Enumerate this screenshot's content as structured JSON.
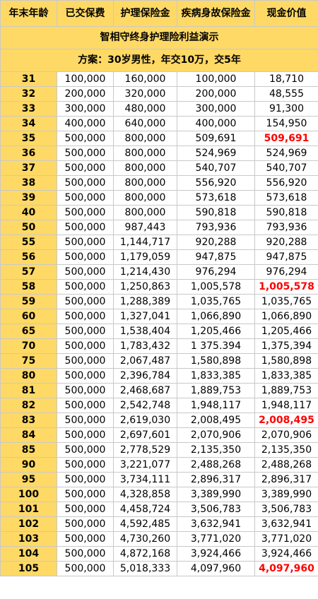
{
  "title": "智相守终身护理险利益演示",
  "plan": "方案：30岁男性，年交10万，交5年",
  "columns": [
    "年末年龄",
    "已交保费",
    "护理保险金",
    "疾病身故保险金",
    "现金价值"
  ],
  "rows": [
    [
      "31",
      "100,000",
      "160,000",
      "100,000",
      "18,710",
      false
    ],
    [
      "32",
      "200,000",
      "320,000",
      "200,000",
      "48,555",
      false
    ],
    [
      "33",
      "300,000",
      "480,000",
      "300,000",
      "91,300",
      false
    ],
    [
      "34",
      "400,000",
      "640,000",
      "400,000",
      "154,950",
      false
    ],
    [
      "35",
      "500,000",
      "800,000",
      "509,691",
      "509,691",
      true
    ],
    [
      "36",
      "500,000",
      "800,000",
      "524,969",
      "524,969",
      false
    ],
    [
      "37",
      "500,000",
      "800,000",
      "540,707",
      "540,707",
      false
    ],
    [
      "38",
      "500,000",
      "800,000",
      "556,920",
      "556,920",
      false
    ],
    [
      "39",
      "500,000",
      "800,000",
      "573,618",
      "573,618",
      false
    ],
    [
      "40",
      "500,000",
      "800,000",
      "590,818",
      "590,818",
      false
    ],
    [
      "50",
      "500,000",
      "987,443",
      "793,936",
      "793,936",
      false
    ],
    [
      "55",
      "500,000",
      "1,144,717",
      "920,288",
      "920,288",
      false
    ],
    [
      "56",
      "500,000",
      "1,179,059",
      "947,875",
      "947,875",
      false
    ],
    [
      "57",
      "500,000",
      "1,214,430",
      "976,294",
      "976,294",
      false
    ],
    [
      "58",
      "500,000",
      "1,250,863",
      "1,005,578",
      "1,005,578",
      true
    ],
    [
      "59",
      "500,000",
      "1,288,389",
      "1,035,765",
      "1,035,765",
      false
    ],
    [
      "60",
      "500,000",
      "1,327,041",
      "1,066,890",
      "1,066,890",
      false
    ],
    [
      "65",
      "500,000",
      "1,538,404",
      "1,205,466",
      "1,205,466",
      false
    ],
    [
      "70",
      "500,000",
      "1,783,432",
      "1 375.394",
      "1,375,394",
      false
    ],
    [
      "75",
      "500,000",
      "2,067,487",
      "1,580,898",
      "1,580,898",
      false
    ],
    [
      "80",
      "500,000",
      "2,396,784",
      "1,833,385",
      "1,833,385",
      false
    ],
    [
      "81",
      "500,000",
      "2,468,687",
      "1,889,753",
      "1,889,753",
      false
    ],
    [
      "82",
      "500,000",
      "2,542,748",
      "1,948,117",
      "1,948,117",
      false
    ],
    [
      "83",
      "500,000",
      "2,619,030",
      "2,008,495",
      "2,008,495",
      true
    ],
    [
      "84",
      "500,000",
      "2,697,601",
      "2,070,906",
      "2,070,906",
      false
    ],
    [
      "85",
      "500,000",
      "2,778,529",
      "2,135,350",
      "2,135,350",
      false
    ],
    [
      "90",
      "500,000",
      "3,221,077",
      "2,488,268",
      "2,488,268",
      false
    ],
    [
      "95",
      "500,000",
      "3,734,111",
      "2,896,317",
      "2,896,317",
      false
    ],
    [
      "100",
      "500,000",
      "4,328,858",
      "3,389,990",
      "3,389,990",
      false
    ],
    [
      "101",
      "500,000",
      "4,458,724",
      "3,506,783",
      "3,506,783",
      false
    ],
    [
      "102",
      "500,000",
      "4,592,485",
      "3,632,941",
      "3,632,941",
      false
    ],
    [
      "103",
      "500,000",
      "4,730,260",
      "3,771,020",
      "3,771,020",
      false
    ],
    [
      "104",
      "500,000",
      "4,872,168",
      "3,924,466",
      "3,924,466",
      false
    ],
    [
      "105",
      "500,000",
      "5,018,333",
      "4,097,960",
      "4,097,960",
      true
    ]
  ],
  "colors": {
    "header_bg": "#ffd966",
    "highlight": "#ff0000",
    "border": "#c9c9c9"
  }
}
